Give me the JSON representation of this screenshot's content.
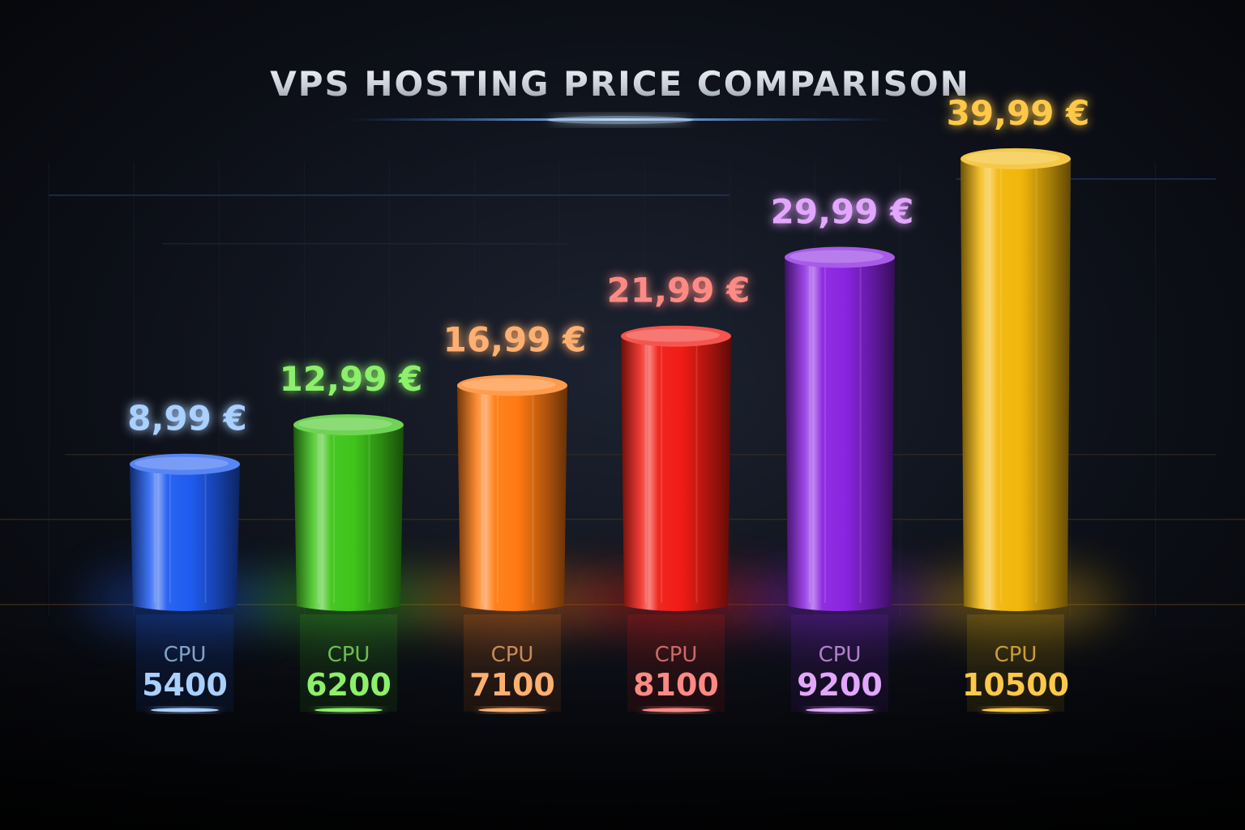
{
  "chart_data": {
    "type": "bar",
    "title": "VPS HOSTING PRICE COMPARISON",
    "category_prefix": "CPU",
    "categories": [
      "5400",
      "6200",
      "7100",
      "8100",
      "9200",
      "10500"
    ],
    "value_labels": [
      "8,99 €",
      "12,99 €",
      "16,99 €",
      "21,99 €",
      "29,99 €",
      "39,99 €"
    ],
    "values": [
      8.99,
      12.99,
      16.99,
      21.99,
      29.99,
      39.99
    ],
    "ylim": [
      0,
      45
    ],
    "grid": false,
    "legend": "none",
    "colors": [
      "#1f5cf0",
      "#3fc41a",
      "#ff7a12",
      "#f01c14",
      "#8a24e0",
      "#f2b60a"
    ],
    "label_colors": [
      "#a9d0ff",
      "#8cf06a",
      "#ffb070",
      "#ff8a84",
      "#e3a6ff",
      "#ffc84a"
    ]
  }
}
